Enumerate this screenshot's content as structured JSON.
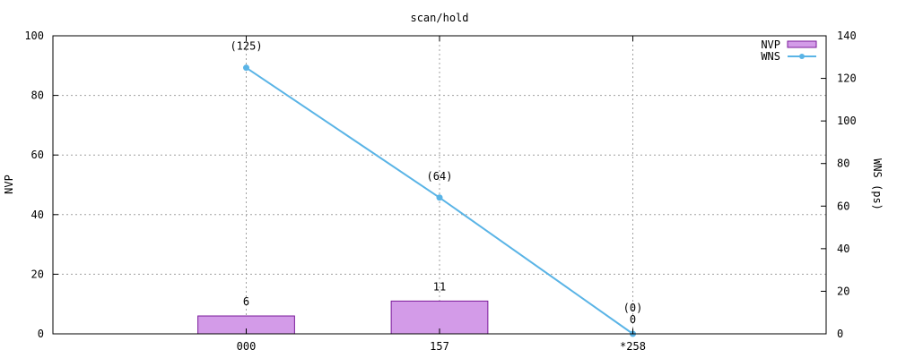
{
  "chart_data": {
    "type": "bar",
    "title": "scan/hold",
    "categories": [
      "000",
      "157",
      "*258"
    ],
    "y_left": {
      "label": "NVP",
      "range": [
        0,
        100
      ],
      "ticks": [
        0,
        20,
        40,
        60,
        80,
        100
      ]
    },
    "y_right": {
      "label": "WNS (ps)",
      "range": [
        0,
        140
      ],
      "ticks": [
        0,
        20,
        40,
        60,
        80,
        100,
        120,
        140
      ]
    },
    "series": [
      {
        "name": "NVP",
        "type": "bar",
        "axis": "left",
        "values": [
          6,
          11,
          0
        ],
        "labels": [
          "6",
          "11",
          "0"
        ],
        "color": "#d39be8",
        "edge_color": "#7a1a9a"
      },
      {
        "name": "WNS",
        "type": "line",
        "axis": "right",
        "values": [
          125,
          64,
          0
        ],
        "labels": [
          "(125)",
          "(64)",
          "(0)"
        ],
        "color": "#5ab4e6"
      }
    ],
    "legend": {
      "placement": "top-right"
    },
    "grid": true
  }
}
